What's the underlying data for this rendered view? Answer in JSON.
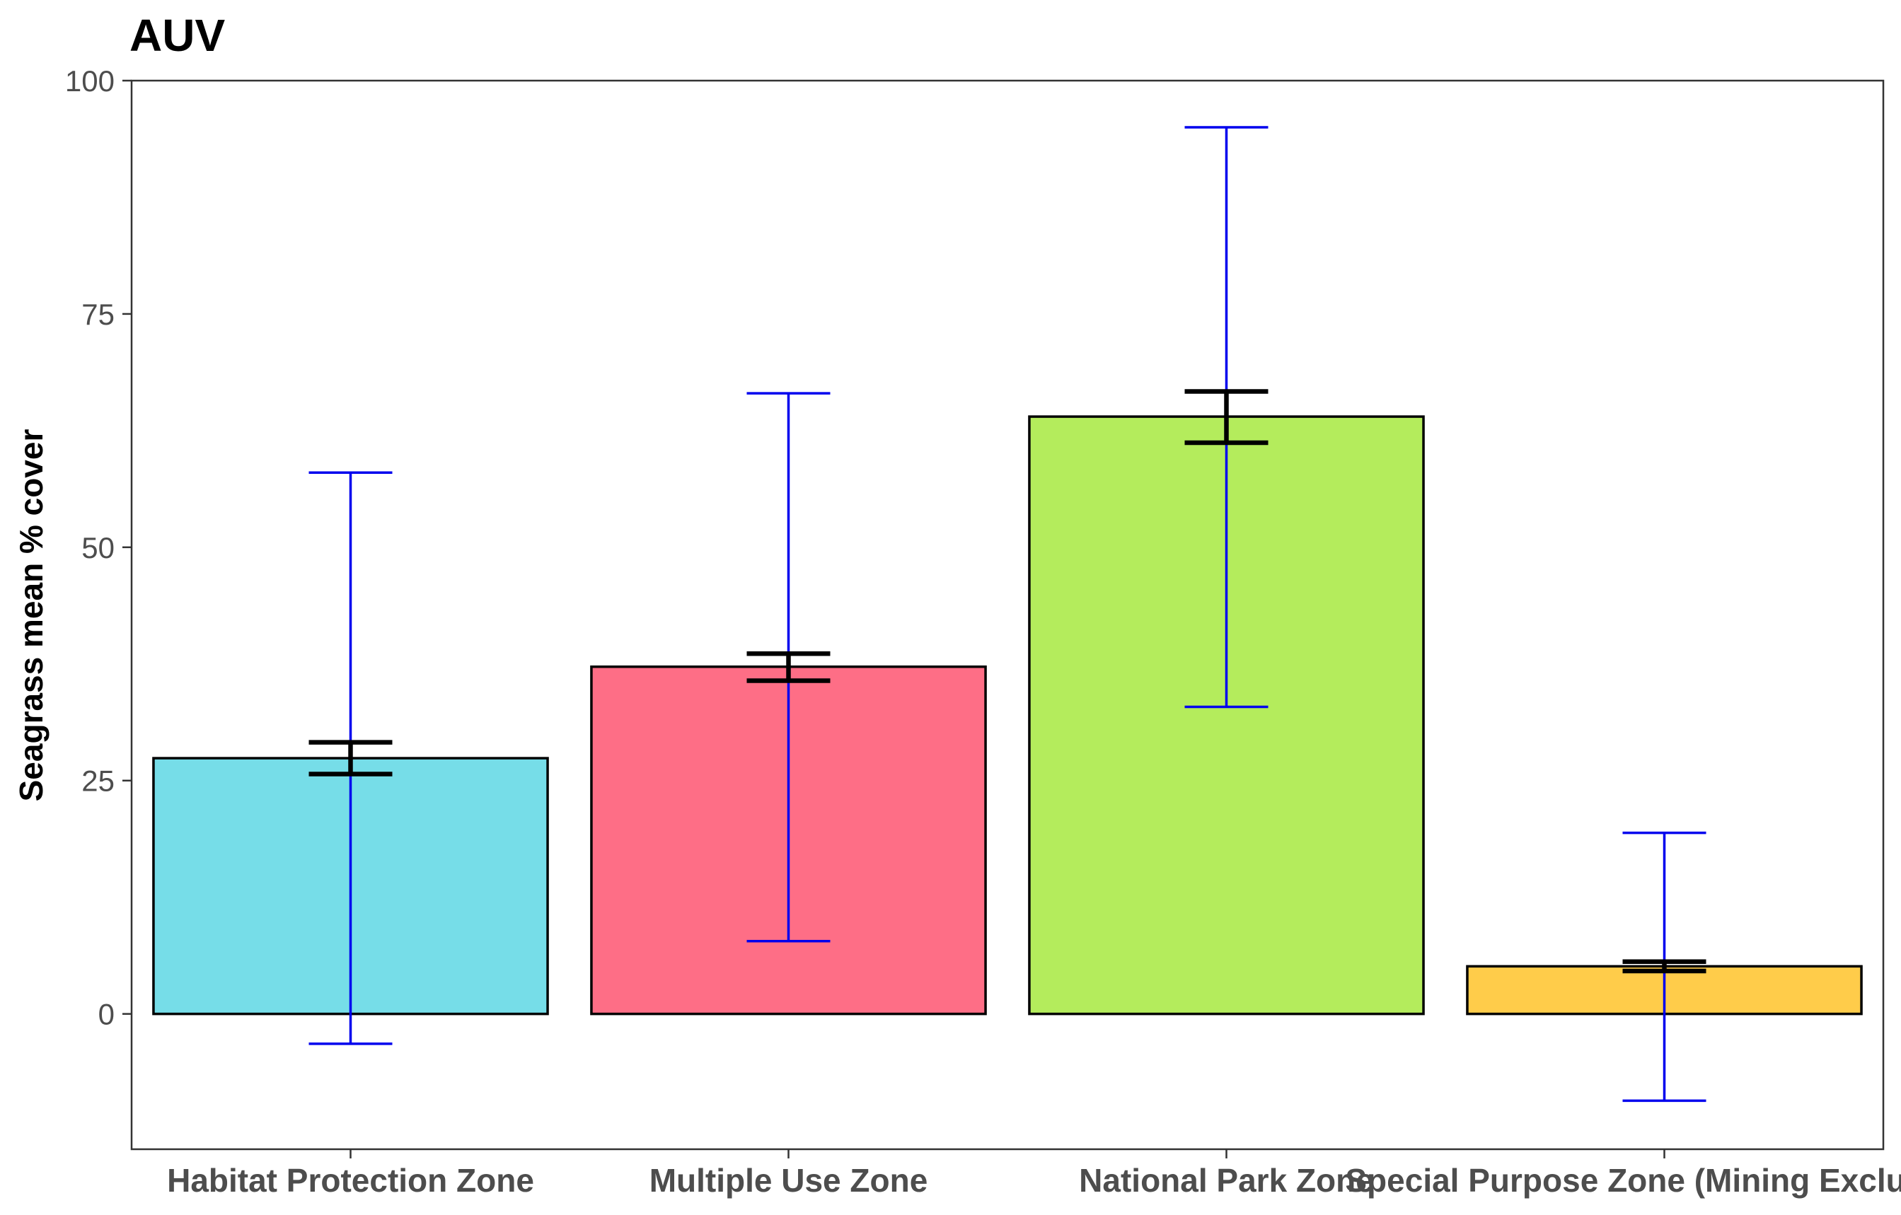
{
  "chart_data": {
    "type": "bar",
    "title": "AUV",
    "xlabel": "",
    "ylabel": "Seagrass mean % cover",
    "ylim": [
      -14.5,
      100
    ],
    "yticks": [
      0,
      25,
      50,
      75,
      100
    ],
    "grid": false,
    "legend": "none",
    "categories": [
      "Habitat Protection Zone",
      "Multiple Use Zone",
      "National Park Zone",
      "Special Purpose Zone (Mining Exclusion)"
    ],
    "values": [
      27.4,
      37.2,
      64.0,
      5.1
    ],
    "colors": [
      "#76DDE8",
      "#FE6E86",
      "#B4EC5C",
      "#FFCC4A"
    ],
    "se": [
      {
        "low": 25.7,
        "high": 29.1
      },
      {
        "low": 35.7,
        "high": 38.6
      },
      {
        "low": 61.2,
        "high": 66.7
      },
      {
        "low": 4.6,
        "high": 5.6
      }
    ],
    "sd": [
      {
        "low": -3.2,
        "high": 58.0
      },
      {
        "low": 7.8,
        "high": 66.5
      },
      {
        "low": 32.9,
        "high": 95.0
      },
      {
        "low": -9.3,
        "high": 19.4
      }
    ],
    "se_color": "#000000",
    "sd_color": "#0000EE"
  }
}
